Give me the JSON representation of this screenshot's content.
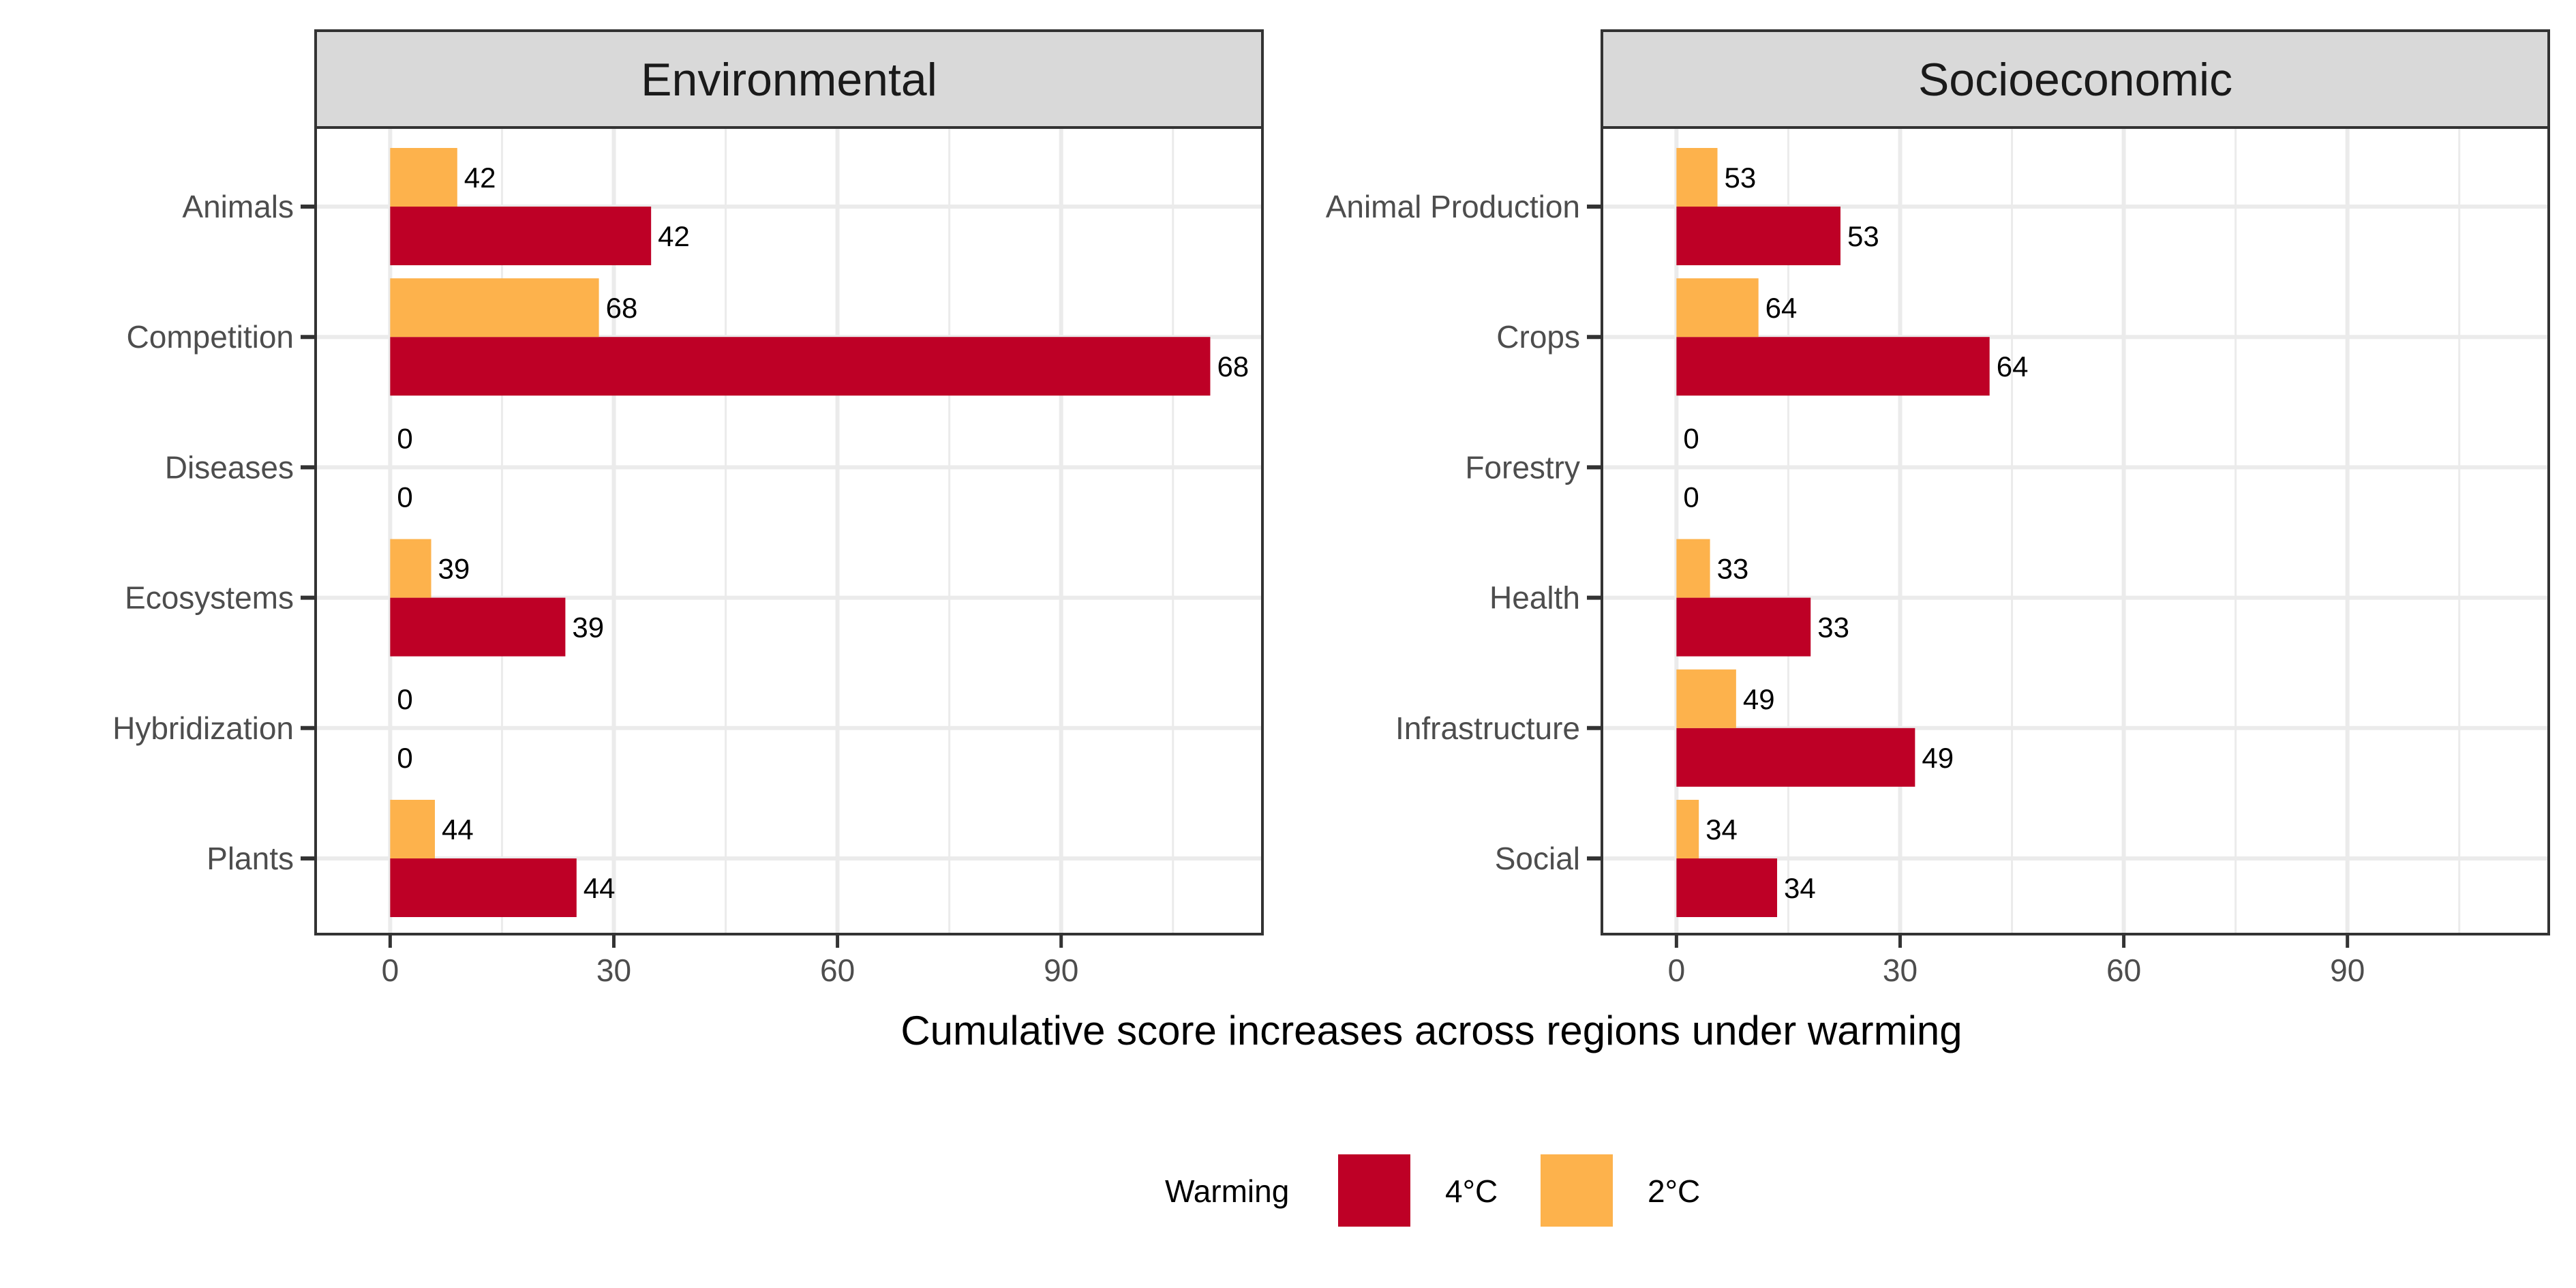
{
  "chart_data": {
    "type": "bar",
    "orientation": "horizontal",
    "xlabel": "Cumulative score increases across regions under warming",
    "xlim": [
      -10,
      117
    ],
    "x_ticks": [
      0,
      30,
      60,
      90
    ],
    "grid": true,
    "legend": {
      "title": "Warming",
      "position": "bottom",
      "entries": [
        {
          "label": "4°C",
          "color": "#BE0026"
        },
        {
          "label": "2°C",
          "color": "#FDB24C"
        }
      ]
    },
    "series_order": [
      "4°C",
      "2°C"
    ],
    "panels": [
      {
        "title": "Environmental",
        "categories": [
          "Animals",
          "Competition",
          "Diseases",
          "Ecosystems",
          "Hybridization",
          "Plants"
        ],
        "series": [
          {
            "name": "4°C",
            "color": "#BE0026",
            "values": [
              35,
              110,
              0,
              23.5,
              0,
              25
            ],
            "labels": [
              "42",
              "68",
              "0",
              "39",
              "0",
              "44"
            ]
          },
          {
            "name": "2°C",
            "color": "#FDB24C",
            "values": [
              9,
              28,
              0,
              5.5,
              0,
              6
            ],
            "labels": [
              "42",
              "68",
              "0",
              "39",
              "0",
              "44"
            ]
          }
        ]
      },
      {
        "title": "Socioeconomic",
        "categories": [
          "Animal Production",
          "Crops",
          "Forestry",
          "Health",
          "Infrastructure",
          "Social"
        ],
        "series": [
          {
            "name": "4°C",
            "color": "#BE0026",
            "values": [
              22,
              42,
              0,
              18,
              32,
              13.5
            ],
            "labels": [
              "53",
              "64",
              "0",
              "33",
              "49",
              "34"
            ]
          },
          {
            "name": "2°C",
            "color": "#FDB24C",
            "values": [
              5.5,
              11,
              0,
              4.5,
              8,
              3
            ],
            "labels": [
              "53",
              "64",
              "0",
              "33",
              "49",
              "34"
            ]
          }
        ]
      }
    ]
  }
}
